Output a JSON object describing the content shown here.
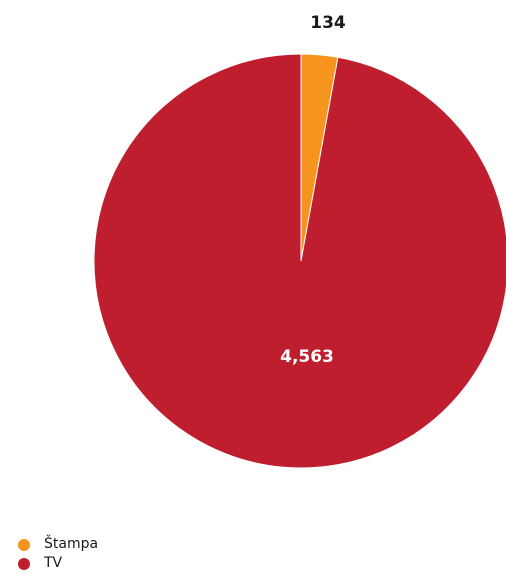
{
  "chart_data": {
    "type": "pie",
    "categories": [
      "Štampa",
      "TV"
    ],
    "values": [
      134,
      4563
    ],
    "data_labels": [
      "134",
      "4,563"
    ],
    "colors": [
      "#f7941d",
      "#be1e2d"
    ],
    "legend_position": "bottom-left"
  }
}
